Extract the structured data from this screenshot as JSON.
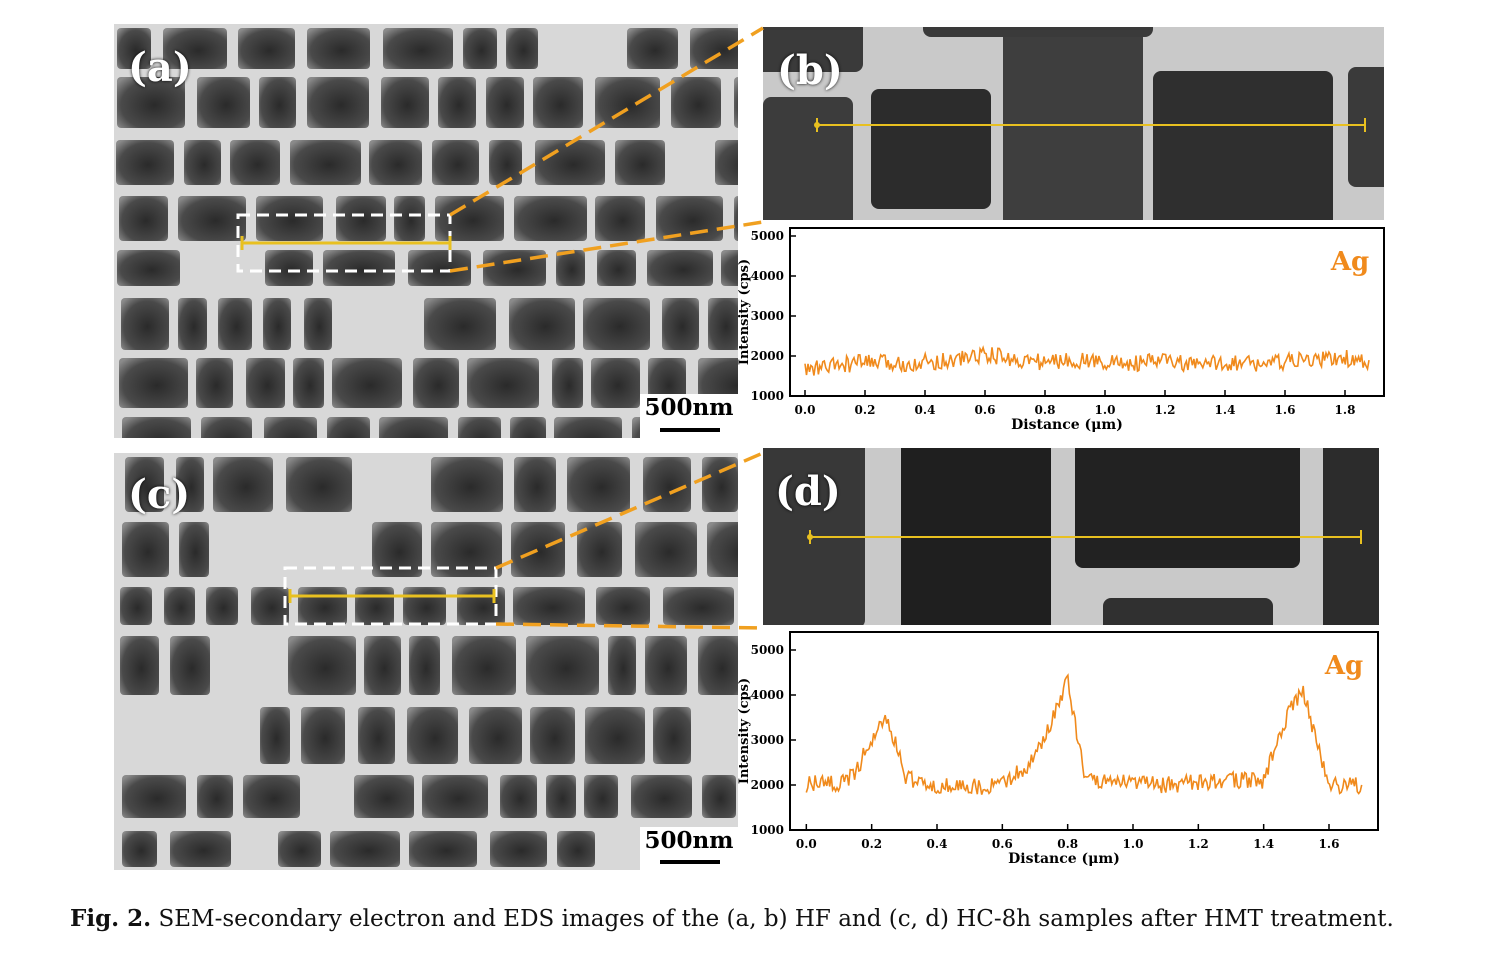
{
  "panels": {
    "a": {
      "label": "(a)",
      "scale_bar": "500nm"
    },
    "b": {
      "label": "(b)"
    },
    "c": {
      "label": "(c)",
      "scale_bar": "500nm"
    },
    "d": {
      "label": "(d)"
    }
  },
  "colors": {
    "line_scan": "#e8c020",
    "plot_line": "#f08a1c",
    "zoom_guide": "#f0a020",
    "selection_box": "#ffffff"
  },
  "caption": {
    "figure_number": "Fig. 2.",
    "text": "SEM-secondary electron and EDS images of the (a, b) HF and (c, d) HC-8h samples after HMT treatment."
  },
  "chart_data": [
    {
      "type": "line",
      "panel": "b",
      "element_label": "Ag",
      "xlabel": "Distance (μm)",
      "ylabel": "Intensity (cps)",
      "xlim": [
        -0.05,
        1.93
      ],
      "ylim": [
        1000,
        5200
      ],
      "xticks": [
        "0.0",
        "0.2",
        "0.4",
        "0.6",
        "0.8",
        "1.0",
        "1.2",
        "1.4",
        "1.6",
        "1.8"
      ],
      "yticks": [
        "1000",
        "2000",
        "3000",
        "4000",
        "5000"
      ],
      "series": [
        {
          "x": [
            0.0,
            0.1,
            0.2,
            0.3,
            0.4,
            0.5,
            0.6,
            0.7,
            0.8,
            0.9,
            1.0,
            1.1,
            1.2,
            1.3,
            1.4,
            1.5,
            1.6,
            1.7,
            1.8,
            1.88
          ],
          "y": [
            1650,
            1750,
            1850,
            1800,
            1850,
            1900,
            2050,
            1900,
            1850,
            1900,
            1850,
            1800,
            1900,
            1750,
            1850,
            1800,
            1850,
            1900,
            1950,
            1800
          ]
        }
      ]
    },
    {
      "type": "line",
      "panel": "d",
      "element_label": "Ag",
      "xlabel": "Distance (μm)",
      "ylabel": "Intensity (cps)",
      "xlim": [
        -0.05,
        1.75
      ],
      "ylim": [
        1000,
        5400
      ],
      "xticks": [
        "0.0",
        "0.2",
        "0.4",
        "0.6",
        "0.8",
        "1.0",
        "1.2",
        "1.4",
        "1.6"
      ],
      "yticks": [
        "1000",
        "2000",
        "3000",
        "4000",
        "5000"
      ],
      "series": [
        {
          "x": [
            0.0,
            0.05,
            0.1,
            0.15,
            0.2,
            0.25,
            0.3,
            0.35,
            0.4,
            0.5,
            0.6,
            0.7,
            0.75,
            0.8,
            0.85,
            0.9,
            1.0,
            1.1,
            1.2,
            1.3,
            1.4,
            1.45,
            1.5,
            1.52,
            1.55,
            1.6,
            1.7
          ],
          "y": [
            2000,
            2050,
            2000,
            2300,
            3000,
            3500,
            2200,
            2000,
            2000,
            1950,
            2000,
            2600,
            3400,
            4300,
            2300,
            2100,
            2050,
            2000,
            2050,
            2100,
            2100,
            3200,
            3900,
            4100,
            3300,
            2000,
            2000
          ]
        }
      ]
    }
  ]
}
